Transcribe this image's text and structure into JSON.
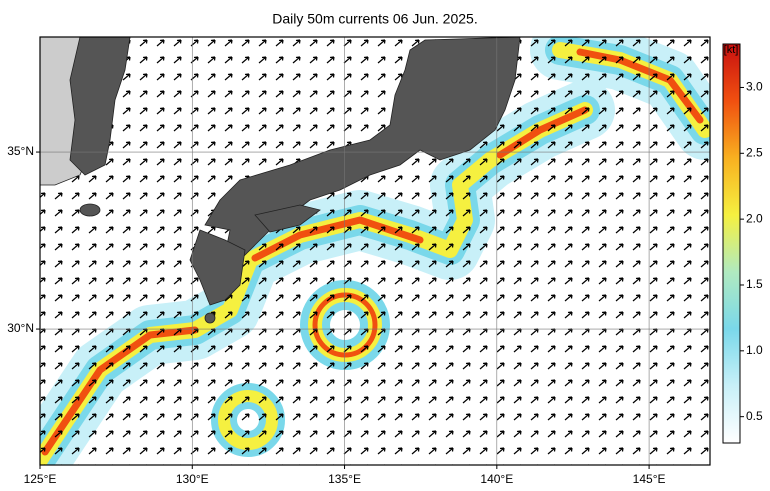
{
  "chart_data": {
    "type": "map",
    "title": "Daily 50m currents 06 Jun. 2025.",
    "xlim": [
      125,
      147
    ],
    "xticks": [
      {
        "value": 125,
        "label": "125°E"
      },
      {
        "value": 130,
        "label": "130°E"
      },
      {
        "value": 135,
        "label": "135°E"
      },
      {
        "value": 140,
        "label": "140°E"
      },
      {
        "value": 145,
        "label": "145°E"
      }
    ],
    "ylim": [
      26.16,
      38.25
    ],
    "yticks": [
      {
        "value": 30,
        "label": "30°N"
      },
      {
        "value": 35,
        "label": "35°N"
      }
    ],
    "grid": true,
    "colorbar": {
      "label": "[kt]",
      "lim": [
        0.3,
        3.33
      ],
      "ticks": [
        0.5,
        {
          "value": 1,
          "label": "1.0"
        },
        1.5,
        {
          "value": 2,
          "label": "2.0"
        },
        2.5,
        {
          "value": 3,
          "label": "3.0"
        }
      ],
      "colors": [
        "#ffffff",
        "#c8f0f8",
        "#7ad8ea",
        "#b0eac0",
        "#f5f040",
        "#f8b020",
        "#f05010",
        "#c81010"
      ]
    }
  }
}
